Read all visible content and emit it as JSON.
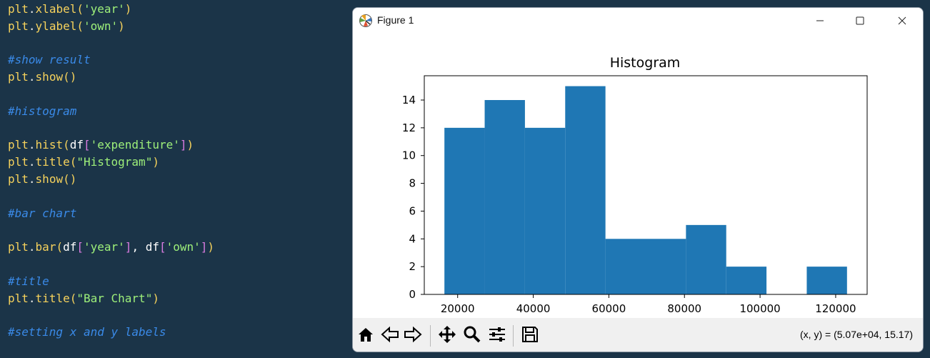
{
  "editor": {
    "lines": [
      {
        "kind": "code",
        "tokens": [
          [
            "obj",
            "plt"
          ],
          [
            "dot",
            "."
          ],
          [
            "fn",
            "xlabel"
          ],
          [
            "paren",
            "("
          ],
          [
            "str",
            "'year'"
          ],
          [
            "paren",
            ")"
          ]
        ]
      },
      {
        "kind": "code",
        "tokens": [
          [
            "obj",
            "plt"
          ],
          [
            "dot",
            "."
          ],
          [
            "fn",
            "ylabel"
          ],
          [
            "paren",
            "("
          ],
          [
            "str",
            "'own'"
          ],
          [
            "paren",
            ")"
          ]
        ]
      },
      {
        "kind": "blank",
        "tokens": []
      },
      {
        "kind": "comment",
        "tokens": [
          [
            "comment",
            "#show result"
          ]
        ]
      },
      {
        "kind": "code",
        "tokens": [
          [
            "obj",
            "plt"
          ],
          [
            "dot",
            "."
          ],
          [
            "fn",
            "show"
          ],
          [
            "paren",
            "()"
          ]
        ]
      },
      {
        "kind": "blank",
        "tokens": []
      },
      {
        "kind": "comment",
        "tokens": [
          [
            "comment",
            "#histogram"
          ]
        ]
      },
      {
        "kind": "blank",
        "tokens": []
      },
      {
        "kind": "code",
        "tokens": [
          [
            "obj",
            "plt"
          ],
          [
            "dot",
            "."
          ],
          [
            "fn",
            "hist"
          ],
          [
            "paren",
            "("
          ],
          [
            "var",
            "df"
          ],
          [
            "bracket",
            "["
          ],
          [
            "str",
            "'expenditure'"
          ],
          [
            "bracket",
            "]"
          ],
          [
            "paren",
            ")"
          ]
        ]
      },
      {
        "kind": "code",
        "tokens": [
          [
            "obj",
            "plt"
          ],
          [
            "dot",
            "."
          ],
          [
            "fn",
            "title"
          ],
          [
            "paren",
            "("
          ],
          [
            "str",
            "\"Histogram\""
          ],
          [
            "paren",
            ")"
          ]
        ]
      },
      {
        "kind": "code",
        "tokens": [
          [
            "obj",
            "plt"
          ],
          [
            "dot",
            "."
          ],
          [
            "fn",
            "show"
          ],
          [
            "paren",
            "()"
          ]
        ]
      },
      {
        "kind": "blank",
        "tokens": []
      },
      {
        "kind": "comment",
        "tokens": [
          [
            "comment",
            "#bar chart"
          ]
        ]
      },
      {
        "kind": "blank",
        "tokens": []
      },
      {
        "kind": "code",
        "tokens": [
          [
            "obj",
            "plt"
          ],
          [
            "dot",
            "."
          ],
          [
            "fn",
            "bar"
          ],
          [
            "paren",
            "("
          ],
          [
            "var",
            "df"
          ],
          [
            "bracket",
            "["
          ],
          [
            "str",
            "'year'"
          ],
          [
            "bracket",
            "]"
          ],
          [
            "var",
            ", df"
          ],
          [
            "bracket",
            "["
          ],
          [
            "str",
            "'own'"
          ],
          [
            "bracket",
            "]"
          ],
          [
            "paren",
            ")"
          ]
        ]
      },
      {
        "kind": "blank",
        "tokens": []
      },
      {
        "kind": "comment",
        "tokens": [
          [
            "comment",
            "#title"
          ]
        ]
      },
      {
        "kind": "code",
        "tokens": [
          [
            "obj",
            "plt"
          ],
          [
            "dot",
            "."
          ],
          [
            "fn",
            "title"
          ],
          [
            "paren",
            "("
          ],
          [
            "str",
            "\"Bar Chart\""
          ],
          [
            "paren",
            ")"
          ]
        ]
      },
      {
        "kind": "blank",
        "tokens": []
      },
      {
        "kind": "comment",
        "tokens": [
          [
            "comment",
            "#setting x and y labels"
          ]
        ]
      }
    ]
  },
  "window": {
    "title": "Figure 1",
    "icons": {
      "app": "matplotlib-logo-icon",
      "minimize": "minimize-icon",
      "maximize": "maximize-icon",
      "close": "close-icon"
    }
  },
  "toolbar": {
    "buttons": [
      "home-icon",
      "back-arrow-icon",
      "forward-arrow-icon",
      "pan-icon",
      "zoom-icon",
      "configure-subplots-icon",
      "save-icon"
    ],
    "coords": "(x, y) = (5.07e+04, 15.17)"
  },
  "chart_data": {
    "type": "bar",
    "title": "Histogram",
    "xlabel": "",
    "ylabel": "",
    "bar_color": "#1f77b4",
    "bin_edges": [
      16500,
      27150,
      37800,
      48450,
      59100,
      69750,
      80400,
      91050,
      101700,
      112350,
      123000
    ],
    "values": [
      12,
      14,
      12,
      15,
      4,
      4,
      5,
      2,
      0,
      2
    ],
    "xlim": [
      11175,
      128325
    ],
    "ylim": [
      0,
      15.75
    ],
    "xticks": [
      20000,
      40000,
      60000,
      80000,
      100000,
      120000
    ],
    "yticks": [
      0,
      2,
      4,
      6,
      8,
      10,
      12,
      14
    ],
    "grid": false
  }
}
